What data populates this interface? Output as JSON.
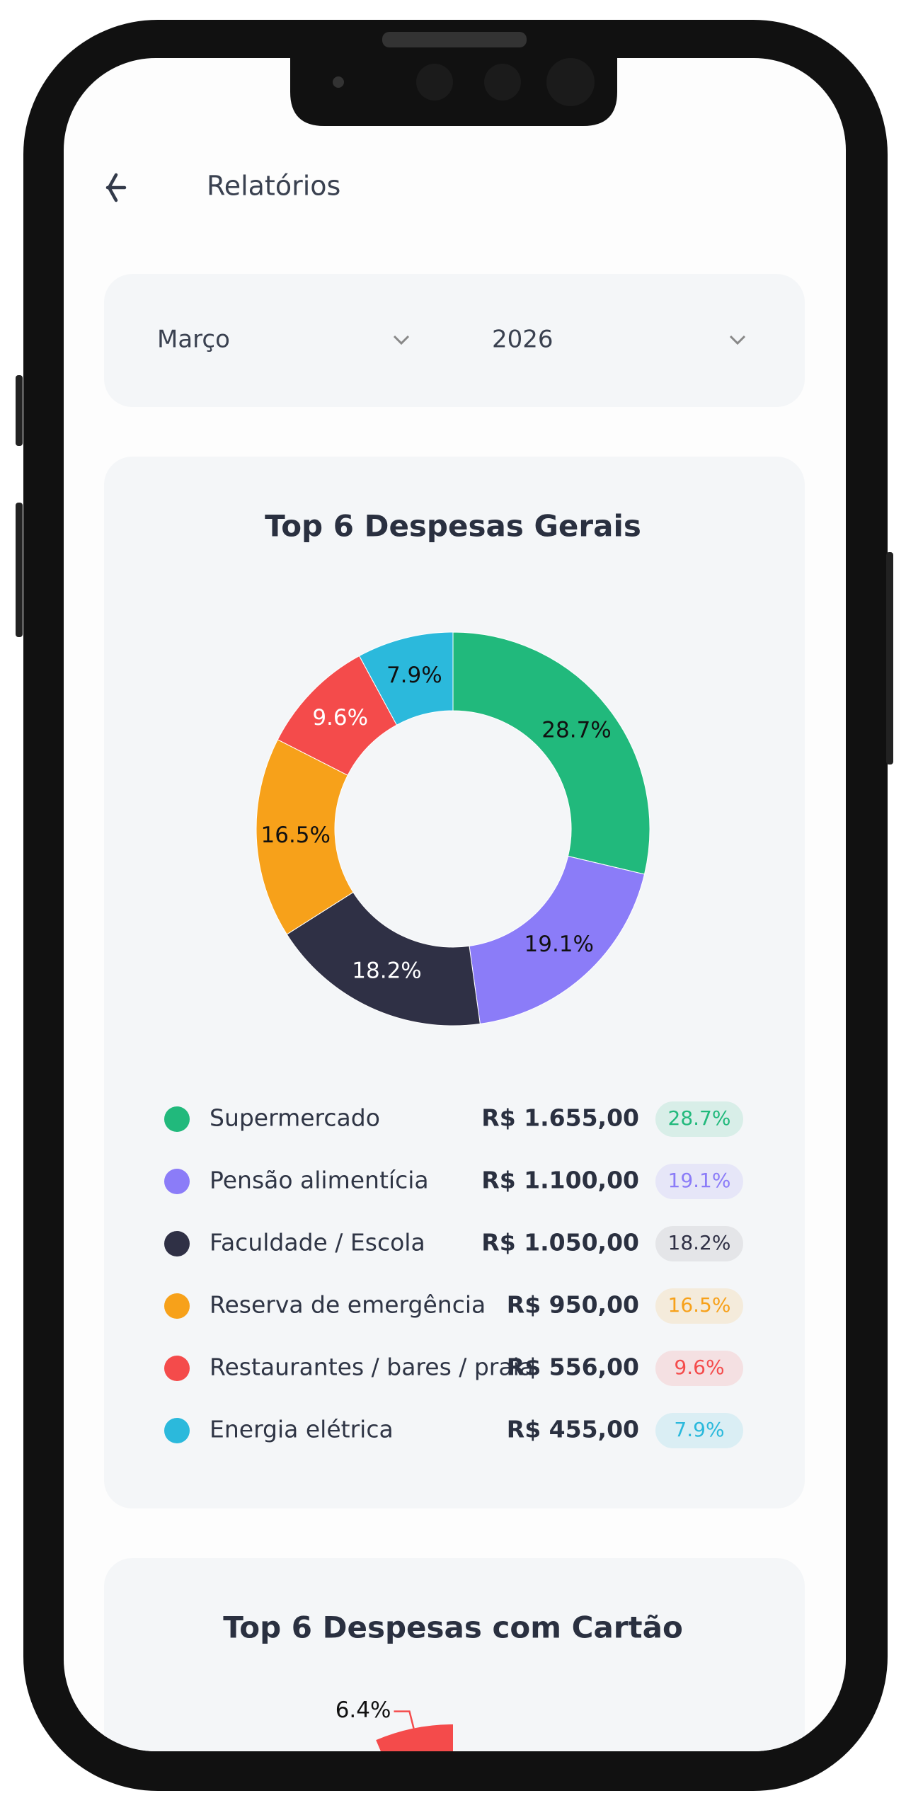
{
  "header": {
    "title": "Relatórios"
  },
  "filters": {
    "month": "Março",
    "year": "2026"
  },
  "chart_data": [
    {
      "type": "donut",
      "title": "Top 6 Despesas Gerais",
      "categories": [
        "Supermercado",
        "Pensão alimentícia",
        "Faculdade / Escola",
        "Reserva de emergência",
        "Restaurantes / bares / praia",
        "Energia elétrica"
      ],
      "values": [
        28.7,
        19.1,
        18.2,
        16.5,
        9.6,
        7.9
      ],
      "value_labels": [
        "28.7%",
        "19.1%",
        "18.2%",
        "16.5%",
        "9.6%",
        "7.9%"
      ],
      "amounts": [
        1655,
        1100,
        1050,
        950,
        556,
        455
      ],
      "amount_labels": [
        "R$ 1.655,00",
        "R$ 1.100,00",
        "R$ 1.050,00",
        "R$ 950,00",
        "R$ 556,00",
        "R$ 455,00"
      ],
      "colors": [
        "#21b97c",
        "#8b7cf8",
        "#2f3045",
        "#f7a11a",
        "#f44b4b",
        "#2bb9dc"
      ]
    },
    {
      "type": "donut",
      "title": "Top 6 Despesas com Cartão",
      "values": [
        6.4
      ],
      "value_labels": [
        "6.4%"
      ],
      "colors": [
        "#f44b4b"
      ]
    }
  ]
}
